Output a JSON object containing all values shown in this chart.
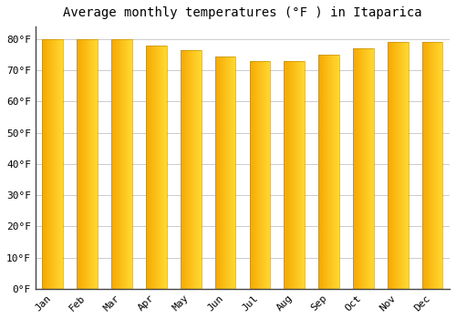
{
  "title": "Average monthly temperatures (°F ) in Itaparica",
  "months": [
    "Jan",
    "Feb",
    "Mar",
    "Apr",
    "May",
    "Jun",
    "Jul",
    "Aug",
    "Sep",
    "Oct",
    "Nov",
    "Dec"
  ],
  "values": [
    80.0,
    80.0,
    80.0,
    78.0,
    76.5,
    74.5,
    73.0,
    73.0,
    75.0,
    77.0,
    79.0,
    79.0
  ],
  "bar_color_left": "#F5A800",
  "bar_color_right": "#FFD966",
  "background_color": "#FFFFFF",
  "grid_color": "#CCCCCC",
  "ylim": [
    0,
    84
  ],
  "yticks": [
    0,
    10,
    20,
    30,
    40,
    50,
    60,
    70,
    80
  ],
  "title_fontsize": 10,
  "tick_fontsize": 8,
  "font_family": "monospace",
  "bar_width": 0.6,
  "figsize": [
    5.0,
    3.5
  ],
  "dpi": 100
}
